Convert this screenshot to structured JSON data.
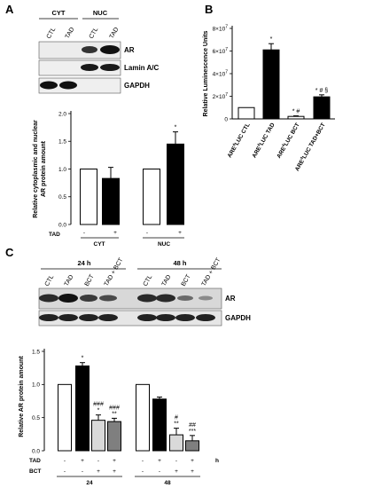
{
  "panels": {
    "a": "A",
    "b": "B",
    "c": "C"
  },
  "blot_a": {
    "groups": [
      "CYT",
      "NUC"
    ],
    "lanes": [
      "CTL",
      "TAD",
      "CTL",
      "TAD"
    ],
    "bands": [
      "AR",
      "Lamin A/C",
      "GAPDH"
    ]
  },
  "blot_c": {
    "time_groups": [
      "24 h",
      "48 h"
    ],
    "lanes": [
      "CTL",
      "TAD",
      "BCT",
      "TAD + BCT",
      "CTL",
      "TAD",
      "BCT",
      "TAD + BCT"
    ],
    "bands": [
      "AR",
      "GAPDH"
    ]
  },
  "chart_data": [
    {
      "type": "bar",
      "panel": "A",
      "ylabel": "Relative cytoplasmic and nuclear AR protein amount",
      "ylim": [
        0,
        2.0
      ],
      "yticks": [
        "0.0",
        "0.5",
        "1.0",
        "1.5",
        "2.0"
      ],
      "bars": [
        {
          "group": "CYT",
          "tad": "-",
          "value": 1.0,
          "err": 0.0,
          "fill": "white",
          "annot": ""
        },
        {
          "group": "CYT",
          "tad": "+",
          "value": 0.83,
          "err": 0.2,
          "fill": "black",
          "annot": ""
        },
        {
          "group": "NUC",
          "tad": "-",
          "value": 1.0,
          "err": 0.0,
          "fill": "white",
          "annot": ""
        },
        {
          "group": "NUC",
          "tad": "+",
          "value": 1.45,
          "err": 0.22,
          "fill": "black",
          "annot": "*"
        }
      ],
      "row_label": "TAD",
      "group_labels": [
        "CYT",
        "NUC"
      ]
    },
    {
      "type": "bar",
      "panel": "B",
      "ylabel": "Relative Luminescence Units",
      "ylim": [
        0,
        8
      ],
      "ytick_mantissa": [
        "0",
        "2×10",
        "4×10",
        "6×10",
        "8×10"
      ],
      "ytick_exponent": "7",
      "categories": [
        "ARE-LUC CTL",
        "ARE-LUC TAD",
        "ARE-LUC BCT",
        "ARE-LUC TAD+BCT"
      ],
      "category_prefix": "ARE",
      "category_sup": "4",
      "category_suffix": [
        "LUC CTL",
        "LUC TAD",
        "LUC BCT",
        "LUC TAD+BCT"
      ],
      "values": [
        1.0,
        6.1,
        0.22,
        1.95
      ],
      "errors": [
        0.0,
        0.55,
        0.05,
        0.18
      ],
      "fills": [
        "white",
        "black",
        "white",
        "black"
      ],
      "annots": [
        "",
        "*",
        "* #",
        "* # §"
      ]
    },
    {
      "type": "bar",
      "panel": "C",
      "ylabel": "Relative AR protein amount",
      "ylim": [
        0,
        1.5
      ],
      "yticks": [
        "0.0",
        "0.5",
        "1.0",
        "1.5"
      ],
      "bars": [
        {
          "time": "24",
          "tad": "-",
          "bct": "-",
          "value": 1.0,
          "err": 0.0,
          "fill": "#ffffff",
          "annot": []
        },
        {
          "time": "24",
          "tad": "+",
          "bct": "-",
          "value": 1.28,
          "err": 0.05,
          "fill": "#000000",
          "annot": [
            "*"
          ]
        },
        {
          "time": "24",
          "tad": "-",
          "bct": "+",
          "value": 0.46,
          "err": 0.08,
          "fill": "#d9d9d9",
          "annot": [
            "###",
            "*"
          ]
        },
        {
          "time": "24",
          "tad": "+",
          "bct": "+",
          "value": 0.44,
          "err": 0.05,
          "fill": "#7f7f7f",
          "annot": [
            "###",
            "**"
          ]
        },
        {
          "time": "48",
          "tad": "-",
          "bct": "-",
          "value": 1.0,
          "err": 0.0,
          "fill": "#ffffff",
          "annot": []
        },
        {
          "time": "48",
          "tad": "+",
          "bct": "-",
          "value": 0.78,
          "err": 0.03,
          "fill": "#000000",
          "annot": []
        },
        {
          "time": "48",
          "tad": "-",
          "bct": "+",
          "value": 0.24,
          "err": 0.1,
          "fill": "#d9d9d9",
          "annot": [
            "#",
            "**"
          ]
        },
        {
          "time": "48",
          "tad": "+",
          "bct": "+",
          "value": 0.15,
          "err": 0.08,
          "fill": "#7f7f7f",
          "annot": [
            "##",
            "***"
          ]
        }
      ],
      "row_labels": [
        "TAD",
        "BCT"
      ],
      "time_labels": [
        "24",
        "48"
      ],
      "time_unit": "h"
    }
  ]
}
